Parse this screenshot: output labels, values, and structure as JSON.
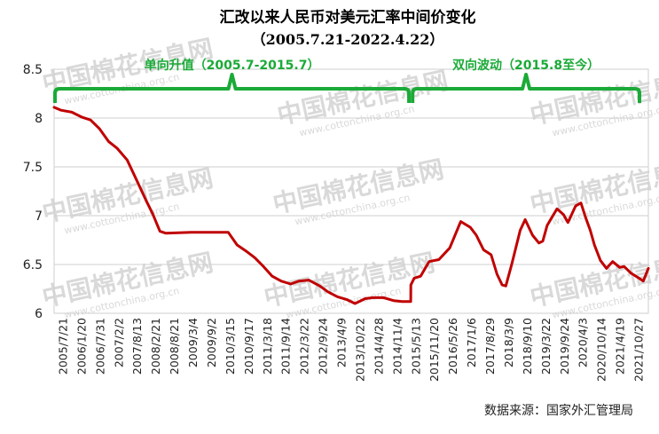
{
  "chart_data": {
    "type": "line",
    "title": "汇改以来人民币对美元汇率中间价变化",
    "subtitle": "（2005.7.21-2022.4.22）",
    "source": "数据来源：国家外汇管理局",
    "watermark": {
      "cn": "中国棉花信息网",
      "en": "www.cottonchina.org.cn"
    },
    "ylim": [
      6,
      8.5
    ],
    "y_ticks": [
      "6",
      "6.5",
      "7",
      "7.5",
      "8",
      "8.5"
    ],
    "x_tick_labels": [
      "2005/7/21",
      "2006/1/20",
      "2006/7/31",
      "2007/2/2",
      "2007/8/13",
      "2008/2/21",
      "2008/8/21",
      "2009/3/4",
      "2009/9/2",
      "2010/3/15",
      "2010/9/17",
      "2011/3/18",
      "2011/9/14",
      "2012/3/22",
      "2012/9/24",
      "2013/4/9",
      "2013/10/22",
      "2014/4/28",
      "2014/11/4",
      "2015/5/13",
      "2015/11/20",
      "2016/5/26",
      "2017/1/6",
      "2017/8/29",
      "2018/3/9",
      "2018/9/10",
      "2019/3/22",
      "2019/9/24",
      "2020/4/3",
      "2020/10/14",
      "2021/4/19",
      "2021/10/27"
    ],
    "grid": "horizontal",
    "line_color": "#c00000",
    "annotation_color": "#1aaa37",
    "annotations": [
      {
        "label": "单向升值（2005.7-2015.7）",
        "start": "2005-07-21",
        "end": "2015-08-10"
      },
      {
        "label": "双向波动（2015.8至今）",
        "start": "2015-08-11",
        "end": "2022-04-22"
      }
    ],
    "series": [
      {
        "x": [
          "2005-07-21",
          "2005-10-01",
          "2006-01-20",
          "2006-05-01",
          "2006-07-31",
          "2006-11-01",
          "2007-02-02",
          "2007-05-01",
          "2007-08-13",
          "2007-11-01",
          "2008-02-21",
          "2008-05-01",
          "2008-07-15",
          "2008-09-15",
          "2009-06-01",
          "2010-03-15",
          "2010-06-18",
          "2010-09-17",
          "2010-12-15",
          "2011-03-18",
          "2011-06-15",
          "2011-09-14",
          "2011-12-15",
          "2012-03-22",
          "2012-06-15",
          "2012-09-24",
          "2013-01-15",
          "2013-04-09",
          "2013-07-15",
          "2013-10-22",
          "2014-01-14",
          "2014-04-28",
          "2014-07-15",
          "2014-11-04",
          "2015-02-15",
          "2015-05-13",
          "2015-08-10",
          "2015-08-11",
          "2015-09-15",
          "2015-11-20",
          "2016-02-15",
          "2016-05-26",
          "2016-09-15",
          "2016-12-20",
          "2017-01-06",
          "2017-04-15",
          "2017-06-15",
          "2017-08-29",
          "2017-11-15",
          "2018-01-15",
          "2018-03-09",
          "2018-04-15",
          "2018-06-15",
          "2018-09-10",
          "2018-10-31",
          "2019-01-15",
          "2019-03-22",
          "2019-05-01",
          "2019-06-15",
          "2019-08-01",
          "2019-09-24",
          "2019-12-01",
          "2020-01-15",
          "2020-04-03",
          "2020-05-28",
          "2020-07-15",
          "2020-09-01",
          "2020-10-14",
          "2020-12-15",
          "2021-02-15",
          "2021-04-19",
          "2021-07-01",
          "2021-08-15",
          "2021-10-27",
          "2022-01-15",
          "2022-03-01",
          "2022-04-22"
        ],
        "values": [
          8.11,
          8.08,
          8.06,
          8.01,
          7.98,
          7.89,
          7.76,
          7.69,
          7.57,
          7.4,
          7.16,
          7.02,
          6.84,
          6.82,
          6.83,
          6.83,
          6.83,
          6.7,
          6.64,
          6.57,
          6.48,
          6.38,
          6.33,
          6.3,
          6.33,
          6.34,
          6.28,
          6.22,
          6.17,
          6.14,
          6.1,
          6.15,
          6.16,
          6.16,
          6.13,
          6.12,
          6.12,
          6.29,
          6.36,
          6.38,
          6.53,
          6.55,
          6.67,
          6.9,
          6.94,
          6.88,
          6.8,
          6.65,
          6.6,
          6.4,
          6.29,
          6.28,
          6.5,
          6.85,
          6.96,
          6.8,
          6.72,
          6.74,
          6.9,
          6.98,
          7.07,
          7.01,
          6.93,
          7.1,
          7.13,
          6.98,
          6.85,
          6.7,
          6.54,
          6.46,
          6.53,
          6.47,
          6.48,
          6.41,
          6.36,
          6.33,
          6.46
        ]
      }
    ]
  }
}
